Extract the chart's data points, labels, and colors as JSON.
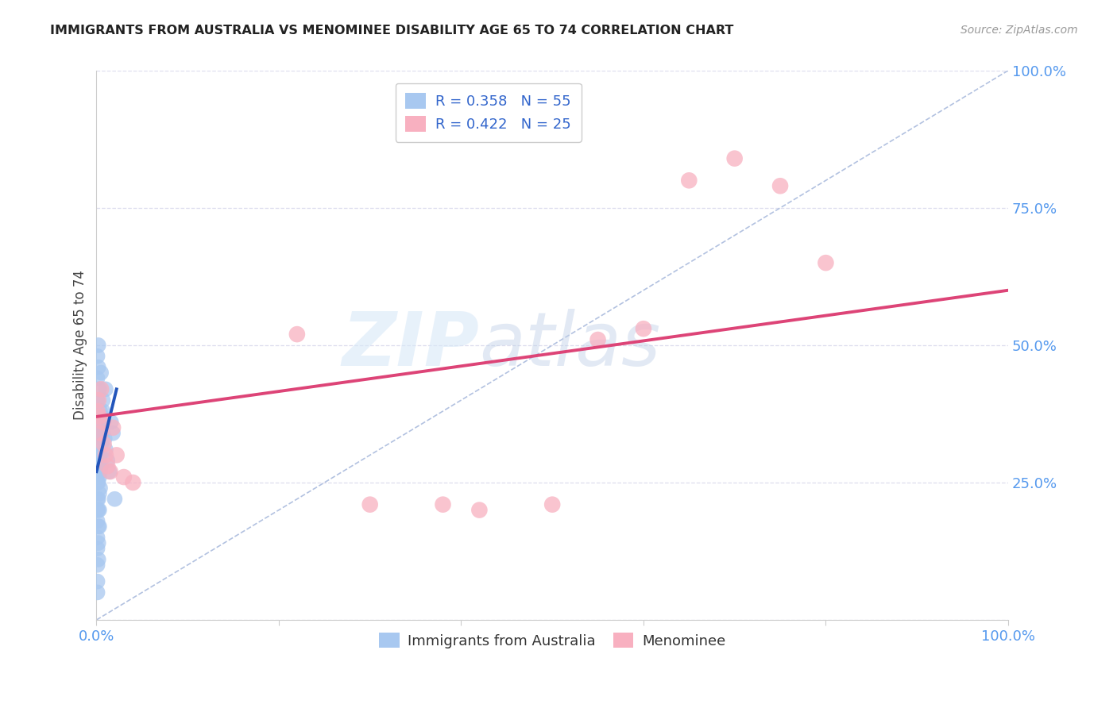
{
  "title": "IMMIGRANTS FROM AUSTRALIA VS MENOMINEE DISABILITY AGE 65 TO 74 CORRELATION CHART",
  "source": "Source: ZipAtlas.com",
  "ylabel": "Disability Age 65 to 74",
  "legend_label1": "Immigrants from Australia",
  "legend_label2": "Menominee",
  "r1": 0.358,
  "n1": 55,
  "r2": 0.422,
  "n2": 25,
  "color1": "#a8c8f0",
  "color2": "#f8b0c0",
  "line1_color": "#2255bb",
  "line2_color": "#dd4477",
  "diag_color": "#aabbdd",
  "background": "#ffffff",
  "grid_color": "#ddddee",
  "xlim": [
    0,
    1
  ],
  "ylim": [
    0,
    1
  ],
  "yticks": [
    0.0,
    0.25,
    0.5,
    0.75,
    1.0
  ],
  "ytick_labels": [
    "",
    "25.0%",
    "50.0%",
    "75.0%",
    "100.0%"
  ],
  "blue_scatter_x": [
    0.001,
    0.001,
    0.001,
    0.001,
    0.001,
    0.001,
    0.001,
    0.001,
    0.001,
    0.001,
    0.002,
    0.002,
    0.002,
    0.002,
    0.002,
    0.002,
    0.002,
    0.002,
    0.003,
    0.003,
    0.003,
    0.003,
    0.003,
    0.003,
    0.004,
    0.004,
    0.004,
    0.004,
    0.005,
    0.005,
    0.005,
    0.006,
    0.006,
    0.007,
    0.007,
    0.008,
    0.009,
    0.01,
    0.012,
    0.014,
    0.016,
    0.018,
    0.02,
    0.001,
    0.001,
    0.001,
    0.001,
    0.001,
    0.002,
    0.002,
    0.003,
    0.004,
    0.005,
    0.007,
    0.01
  ],
  "blue_scatter_y": [
    0.3,
    0.27,
    0.25,
    0.22,
    0.2,
    0.18,
    0.15,
    0.13,
    0.1,
    0.07,
    0.3,
    0.28,
    0.25,
    0.22,
    0.2,
    0.17,
    0.14,
    0.11,
    0.32,
    0.29,
    0.26,
    0.23,
    0.2,
    0.17,
    0.34,
    0.3,
    0.27,
    0.24,
    0.35,
    0.32,
    0.28,
    0.37,
    0.33,
    0.38,
    0.34,
    0.36,
    0.33,
    0.31,
    0.29,
    0.27,
    0.36,
    0.34,
    0.22,
    0.48,
    0.44,
    0.4,
    0.36,
    0.05,
    0.5,
    0.46,
    0.42,
    0.38,
    0.45,
    0.4,
    0.42
  ],
  "pink_scatter_x": [
    0.001,
    0.002,
    0.003,
    0.004,
    0.005,
    0.007,
    0.008,
    0.01,
    0.012,
    0.015,
    0.018,
    0.022,
    0.03,
    0.04,
    0.38,
    0.42,
    0.5,
    0.55,
    0.6,
    0.65,
    0.7,
    0.75,
    0.8,
    0.22,
    0.3
  ],
  "pink_scatter_y": [
    0.38,
    0.4,
    0.37,
    0.34,
    0.42,
    0.36,
    0.32,
    0.3,
    0.28,
    0.27,
    0.35,
    0.3,
    0.26,
    0.25,
    0.21,
    0.2,
    0.21,
    0.51,
    0.53,
    0.8,
    0.84,
    0.79,
    0.65,
    0.52,
    0.21
  ],
  "blue_line_x": [
    0.0,
    0.022
  ],
  "blue_line_y": [
    0.27,
    0.42
  ],
  "pink_line_x": [
    0.0,
    1.0
  ],
  "pink_line_y": [
    0.37,
    0.6
  ]
}
